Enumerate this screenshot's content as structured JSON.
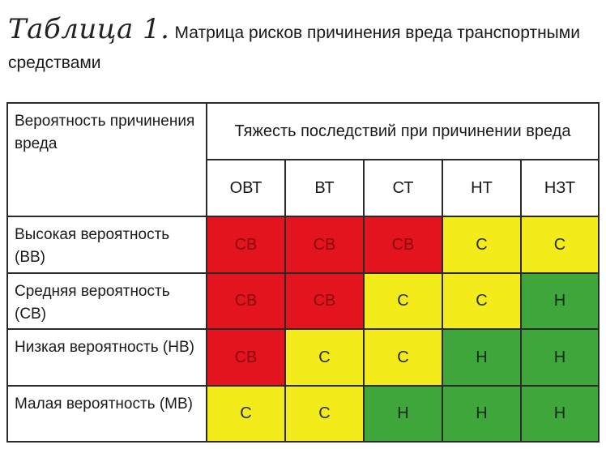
{
  "caption": {
    "label": "Таблица 1.",
    "text": "Матрица рисков  причинения вреда транспортными средствами"
  },
  "table": {
    "corner_header": "Вероятность причинения вреда",
    "severity_header": "Тяжесть последствий при причинении вреда",
    "columns": [
      "ОВТ",
      "ВТ",
      "СТ",
      "НТ",
      "НЗТ"
    ],
    "rows": [
      {
        "label": "Высокая вероятность (ВВ)",
        "cells": [
          {
            "text": "СВ",
            "color": "#e3141d"
          },
          {
            "text": "СВ",
            "color": "#e3141d"
          },
          {
            "text": "СВ",
            "color": "#e3141d"
          },
          {
            "text": "С",
            "color": "#f3ec1a"
          },
          {
            "text": "С",
            "color": "#f3ec1a"
          }
        ]
      },
      {
        "label": "Средняя вероятность (СВ)",
        "cells": [
          {
            "text": "СВ",
            "color": "#e3141d"
          },
          {
            "text": "СВ",
            "color": "#e3141d"
          },
          {
            "text": "С",
            "color": "#f3ec1a"
          },
          {
            "text": "С",
            "color": "#f3ec1a"
          },
          {
            "text": "Н",
            "color": "#3ea63b"
          }
        ]
      },
      {
        "label": "Низкая вероятность (НВ)",
        "cells": [
          {
            "text": "СВ",
            "color": "#e3141d"
          },
          {
            "text": "С",
            "color": "#f3ec1a"
          },
          {
            "text": "С",
            "color": "#f3ec1a"
          },
          {
            "text": "Н",
            "color": "#3ea63b"
          },
          {
            "text": "Н",
            "color": "#3ea63b"
          }
        ]
      },
      {
        "label": "Малая вероятность (МВ)",
        "cells": [
          {
            "text": "С",
            "color": "#f3ec1a"
          },
          {
            "text": "С",
            "color": "#f3ec1a"
          },
          {
            "text": "Н",
            "color": "#3ea63b"
          },
          {
            "text": "Н",
            "color": "#3ea63b"
          },
          {
            "text": "Н",
            "color": "#3ea63b"
          }
        ]
      }
    ]
  }
}
